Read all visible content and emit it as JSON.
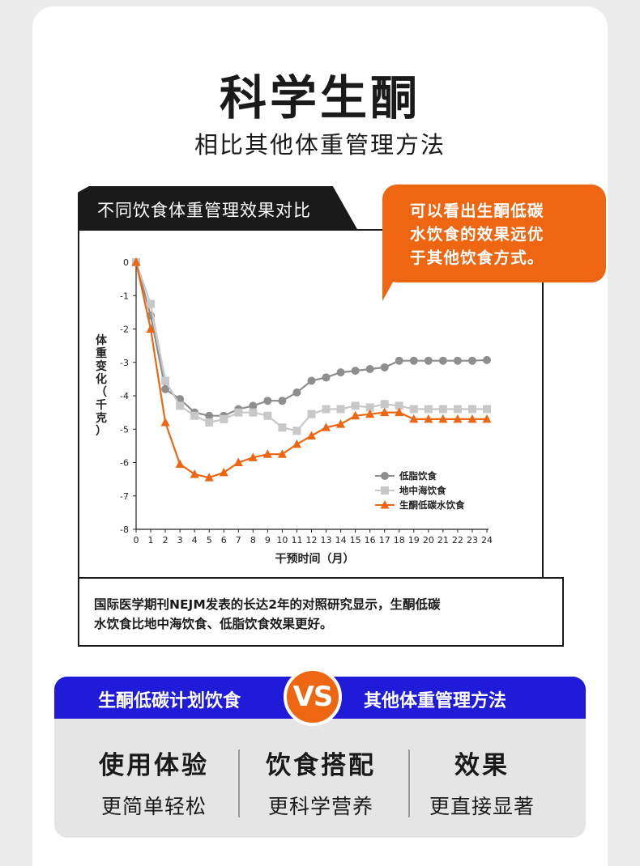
{
  "header": {
    "title": "科学生酮",
    "subtitle": "相比其他体重管理方法"
  },
  "chart_panel": {
    "tab_label": "不同饮食体重管理效果对比",
    "callout_lines": [
      "可以看出生酮低碳",
      "水饮食的效果远优",
      "于其他饮食方式。"
    ],
    "note_lines": [
      "国际医学期刊NEJM发表的长达2年的对照研究显示，生酮低碳",
      "水饮食比地中海饮食、低脂饮食效果更好。"
    ]
  },
  "chart_data": {
    "type": "line",
    "title": "",
    "xlabel": "干预时间（月）",
    "ylabel": "体重变化（千克）",
    "x": [
      0,
      1,
      2,
      3,
      4,
      5,
      6,
      7,
      8,
      9,
      10,
      11,
      12,
      13,
      14,
      15,
      16,
      17,
      18,
      19,
      20,
      21,
      22,
      23,
      24
    ],
    "xlim": [
      0,
      24
    ],
    "ylim": [
      -8,
      0
    ],
    "y_ticks": [
      0,
      -1,
      -2,
      -3,
      -4,
      -5,
      -6,
      -7,
      -8
    ],
    "grid": false,
    "legend_position": "bottom-right",
    "series": [
      {
        "name": "低脂饮食",
        "marker": "circle",
        "color": "#8e8e8e",
        "x": [
          0,
          1,
          2,
          3,
          4,
          5,
          6,
          7,
          8,
          9,
          10,
          11,
          12,
          13,
          14,
          15,
          16,
          17,
          18,
          19,
          20,
          21,
          22,
          23,
          24
        ],
        "values": [
          0,
          -1.6,
          -3.8,
          -4.1,
          -4.5,
          -4.6,
          -4.6,
          -4.4,
          -4.3,
          -4.15,
          -4.15,
          -3.9,
          -3.55,
          -3.45,
          -3.3,
          -3.25,
          -3.2,
          -3.15,
          -2.95,
          -2.95,
          -2.95,
          -2.95,
          -2.95,
          -2.95,
          -2.93
        ]
      },
      {
        "name": "地中海饮食",
        "marker": "square",
        "color": "#c8c8c8",
        "x": [
          0,
          1,
          2,
          3,
          4,
          5,
          6,
          7,
          8,
          9,
          10,
          11,
          12,
          13,
          14,
          15,
          16,
          17,
          18,
          19,
          20,
          21,
          22,
          23,
          24
        ],
        "values": [
          0,
          -1.25,
          -3.55,
          -4.3,
          -4.6,
          -4.8,
          -4.7,
          -4.5,
          -4.5,
          -4.6,
          -4.95,
          -5.05,
          -4.55,
          -4.4,
          -4.4,
          -4.3,
          -4.35,
          -4.25,
          -4.3,
          -4.4,
          -4.4,
          -4.4,
          -4.4,
          -4.4,
          -4.4
        ]
      },
      {
        "name": "生酮低碳水饮食",
        "marker": "triangle",
        "color": "#ee6611",
        "x": [
          0,
          1,
          2,
          3,
          4,
          5,
          6,
          7,
          8,
          9,
          10,
          11,
          12,
          13,
          14,
          15,
          16,
          17,
          18,
          19,
          20,
          21,
          22,
          23,
          24
        ],
        "values": [
          0,
          -2.0,
          -4.8,
          -6.05,
          -6.35,
          -6.45,
          -6.3,
          -6.0,
          -5.85,
          -5.75,
          -5.75,
          -5.45,
          -5.2,
          -4.95,
          -4.85,
          -4.6,
          -4.55,
          -4.5,
          -4.5,
          -4.7,
          -4.7,
          -4.7,
          -4.7,
          -4.7,
          -4.7
        ]
      }
    ]
  },
  "comparison": {
    "left_label": "生酮低碳计划饮食",
    "vs_label": "VS",
    "right_label": "其他体重管理方法",
    "columns": [
      {
        "heading": "使用体验",
        "text": "更简单轻松"
      },
      {
        "heading": "饮食搭配",
        "text": "更科学营养"
      },
      {
        "heading": "效果",
        "text": "更直接显著"
      }
    ]
  }
}
